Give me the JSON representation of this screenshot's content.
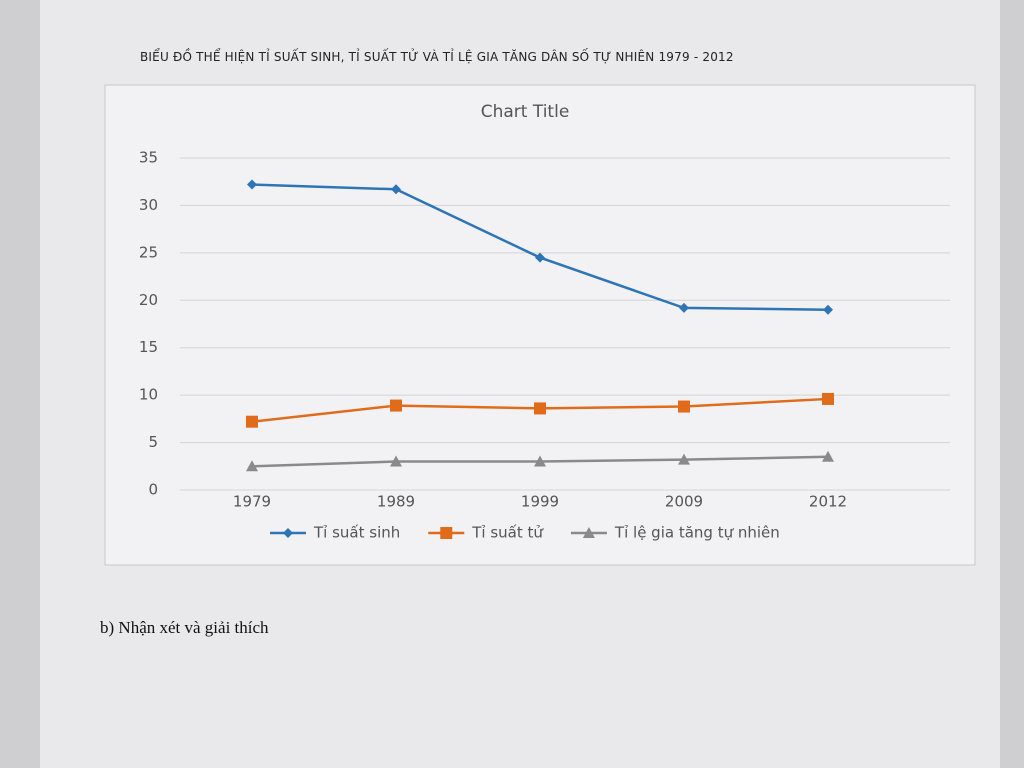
{
  "heading": "BIỂU ĐỒ THỂ HIỆN TỈ SUẤT SINH, TỈ SUẤT TỬ VÀ TỈ LỆ GIA TĂNG DÂN SỐ TỰ NHIÊN 1979 - 2012",
  "chart_data": {
    "type": "line",
    "title": "Chart Title",
    "categories": [
      "1979",
      "1989",
      "1999",
      "2009",
      "2012"
    ],
    "series": [
      {
        "name": "Tỉ suất sinh",
        "color": "#2e75b6",
        "marker": "diamond",
        "values": [
          32.2,
          31.7,
          24.5,
          19.2,
          19
        ]
      },
      {
        "name": "Tỉ suất tử",
        "color": "#e06c1a",
        "marker": "square",
        "values": [
          7.2,
          8.9,
          8.6,
          8.8,
          9.6
        ]
      },
      {
        "name": "Tỉ lệ gia tăng tự nhiên",
        "color": "#8a8a8a",
        "marker": "triangle",
        "values": [
          2.5,
          3,
          3,
          3.2,
          3.5
        ]
      }
    ],
    "ylim": [
      0,
      35
    ],
    "yticks": [
      0,
      5,
      10,
      15,
      20,
      25,
      30,
      35
    ],
    "grid": true,
    "legend": "bottom"
  },
  "footer_text": "b) Nhận xét và giải thích"
}
